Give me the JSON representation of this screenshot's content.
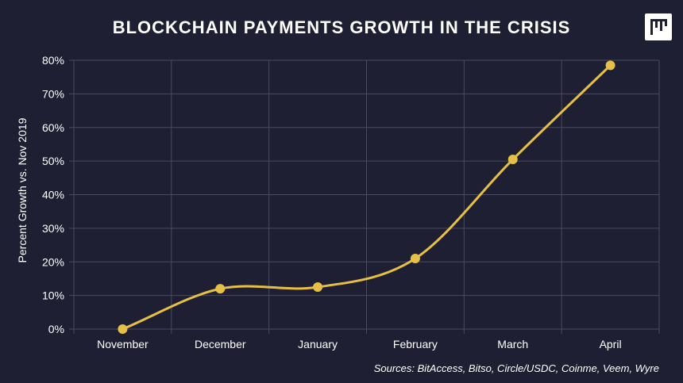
{
  "header": {
    "title": "BLOCKCHAIN PAYMENTS GROWTH IN THE CRISIS",
    "logo_icon": "pymnts-logo-icon"
  },
  "footer": {
    "source": "Sources: BitAccess, Bitso, Circle/USDC, Coinme, Veem, Wyre"
  },
  "colors": {
    "background": "#1e1f32",
    "line": "#e6bf45",
    "grid": "#4a4b5e",
    "text": "#ffffff"
  },
  "chart_data": {
    "type": "line",
    "title": "BLOCKCHAIN PAYMENTS GROWTH IN THE CRISIS",
    "xlabel": "",
    "ylabel": "Percent Growth vs. Nov 2019",
    "categories": [
      "November",
      "December",
      "January",
      "February",
      "March",
      "April"
    ],
    "series": [
      {
        "values": [
          0,
          12,
          12.5,
          21,
          50.5,
          78.5
        ]
      }
    ],
    "ylim": [
      0,
      80
    ],
    "yticks": [
      "0%",
      "10%",
      "20%",
      "30%",
      "40%",
      "50%",
      "60%",
      "70%",
      "80%"
    ],
    "grid": true,
    "legend": "none"
  }
}
